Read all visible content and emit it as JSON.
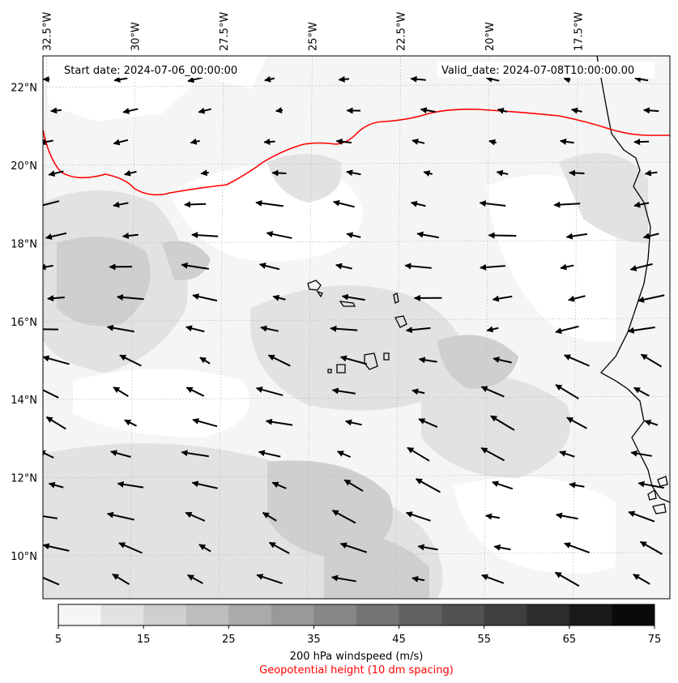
{
  "map": {
    "start_label": "Start date: 2024-07-06_00:00:00",
    "valid_label": "Valid_date: 2024-07-08T10:00:00.00",
    "lon_labels": [
      "32.5°W",
      "30°W",
      "27.5°W",
      "25°W",
      "22.5°W",
      "20°W",
      "17.5°W"
    ],
    "lat_labels": [
      "22°N",
      "20°N",
      "18°N",
      "16°N",
      "14°N",
      "12°N",
      "10°N"
    ],
    "lon_values": [
      -32.5,
      -30,
      -27.5,
      -25,
      -22.5,
      -20,
      -17.5
    ],
    "lat_values": [
      22,
      20,
      18,
      16,
      14,
      12,
      10
    ],
    "extent": {
      "lon_min": -32.6,
      "lon_max": -14.9,
      "lat_min": 8.9,
      "lat_max": 22.8
    },
    "geopotential_contour_color": "#ff0000",
    "arrow_color": "#000000"
  },
  "colorbar": {
    "ticks": [
      "5",
      "15",
      "25",
      "35",
      "45",
      "55",
      "65",
      "75"
    ],
    "levels": [
      5,
      10,
      15,
      20,
      25,
      30,
      35,
      40,
      45,
      50,
      55,
      60,
      65,
      70,
      75
    ],
    "colors": [
      "#f5f5f5",
      "#e2e2e2",
      "#cfcfcf",
      "#bdbdbd",
      "#aaaaaa",
      "#999999",
      "#878787",
      "#747474",
      "#626262",
      "#515151",
      "#3f3f3f",
      "#2c2c2c",
      "#1a1a1a",
      "#0a0a0a"
    ],
    "label": "200 hPa windspeed (m/s)",
    "sublabel": "Geopotential height (10 dm spacing)"
  }
}
